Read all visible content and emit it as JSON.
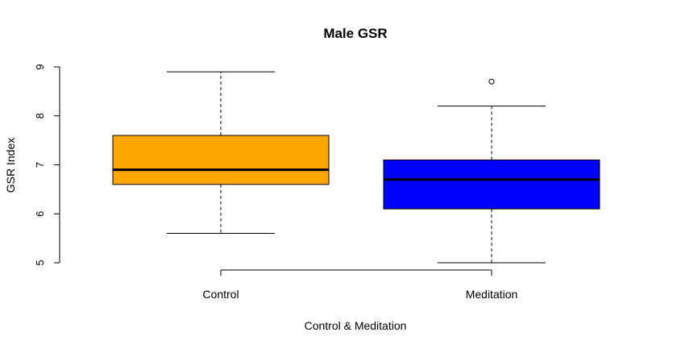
{
  "chart_data": {
    "type": "boxplot",
    "title": "Male GSR",
    "xlabel": "Control & Meditation",
    "ylabel": "GSR Index",
    "categories": [
      "Control",
      "Meditation"
    ],
    "ylim": [
      5,
      9
    ],
    "yticks": [
      "5",
      "6",
      "7",
      "8",
      "9"
    ],
    "grid": false,
    "boxes": [
      {
        "name": "Control",
        "whisker_low": 5.6,
        "q1": 6.6,
        "median": 6.9,
        "q3": 7.6,
        "whisker_high": 8.9,
        "outliers": [],
        "color": "#FFA500"
      },
      {
        "name": "Meditation",
        "whisker_low": 5.0,
        "q1": 6.1,
        "median": 6.7,
        "q3": 7.1,
        "whisker_high": 8.2,
        "outliers": [
          8.7
        ],
        "color": "#0000FF"
      }
    ]
  }
}
